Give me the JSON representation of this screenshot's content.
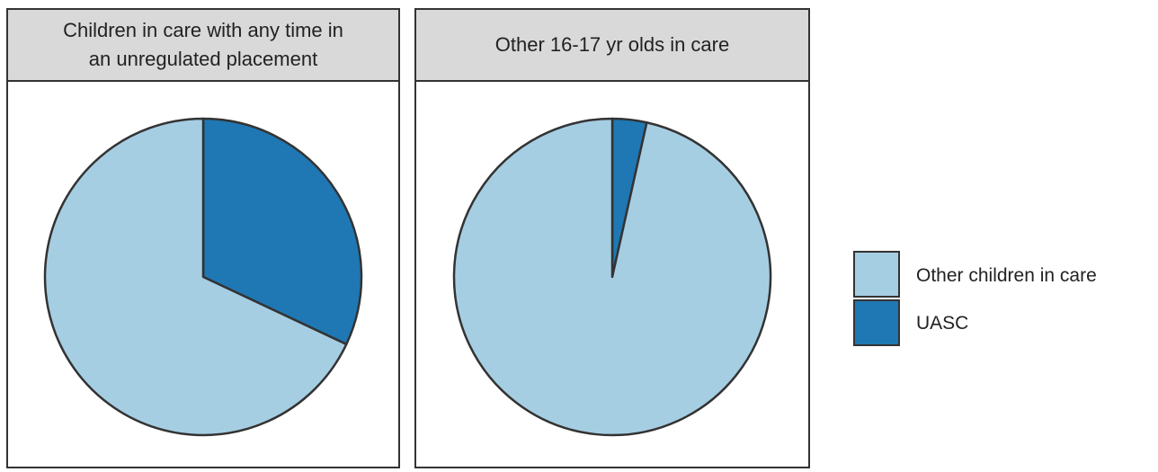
{
  "chart_data": {
    "type": "pie",
    "facets": [
      {
        "title_lines": [
          "Children in care with any time in",
          "an unregulated placement"
        ],
        "slices": [
          {
            "category": "UASC",
            "value": 0.32
          },
          {
            "category": "Other children in care",
            "value": 0.68
          }
        ]
      },
      {
        "title_lines": [
          "Other 16-17 yr olds in care"
        ],
        "slices": [
          {
            "category": "UASC",
            "value": 0.035
          },
          {
            "category": "Other children in care",
            "value": 0.965
          }
        ]
      }
    ],
    "legend": {
      "placement": "right",
      "entries": [
        {
          "label": "Other children in care",
          "color": "#a6cee3"
        },
        {
          "label": "UASC",
          "color": "#1f78b4"
        }
      ]
    },
    "colors": {
      "UASC": "#1f78b4",
      "Other children in care": "#a6cee3",
      "strip_background": "#d9d9d9",
      "panel_border": "#333333",
      "slice_outline": "#333333"
    }
  }
}
